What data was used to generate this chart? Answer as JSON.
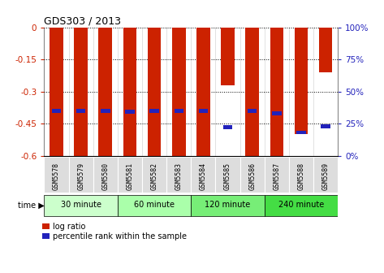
{
  "title": "GDS303 / 2013",
  "samples": [
    "GSM5578",
    "GSM5579",
    "GSM5580",
    "GSM5581",
    "GSM5582",
    "GSM5583",
    "GSM5584",
    "GSM5585",
    "GSM5586",
    "GSM5587",
    "GSM5588",
    "GSM5589"
  ],
  "log_ratio": [
    -0.6,
    -0.6,
    -0.6,
    -0.6,
    -0.6,
    -0.6,
    -0.6,
    -0.27,
    -0.6,
    -0.6,
    -0.5,
    -0.21
  ],
  "percentile_rank": [
    35,
    35,
    35,
    34,
    35,
    35,
    35,
    22,
    35,
    33,
    18,
    23
  ],
  "ylim": [
    -0.6,
    0
  ],
  "yticks": [
    0,
    -0.15,
    -0.3,
    -0.45,
    -0.6
  ],
  "ytick_labels": [
    "0",
    "-0.15",
    "-0.3",
    "-0.45",
    "-0.6"
  ],
  "right_ytick_pcts": [
    100,
    75,
    50,
    25,
    0
  ],
  "right_ytick_labels": [
    "100%",
    "75%",
    "50%",
    "25%",
    "0%"
  ],
  "bar_color": "#cc2200",
  "blue_color": "#2222bb",
  "bar_width": 0.55,
  "group_labels": [
    "30 minute",
    "60 minute",
    "120 minute",
    "240 minute"
  ],
  "group_sample_ranges": [
    [
      0,
      2
    ],
    [
      3,
      5
    ],
    [
      6,
      8
    ],
    [
      9,
      11
    ]
  ],
  "group_colors": [
    "#ccffcc",
    "#aaffaa",
    "#77ee77",
    "#44dd44"
  ],
  "time_label": "time ▶",
  "legend_log_ratio": "log ratio",
  "legend_percentile": "percentile rank within the sample",
  "background_color": "#ffffff",
  "label_box_color": "#dddddd"
}
